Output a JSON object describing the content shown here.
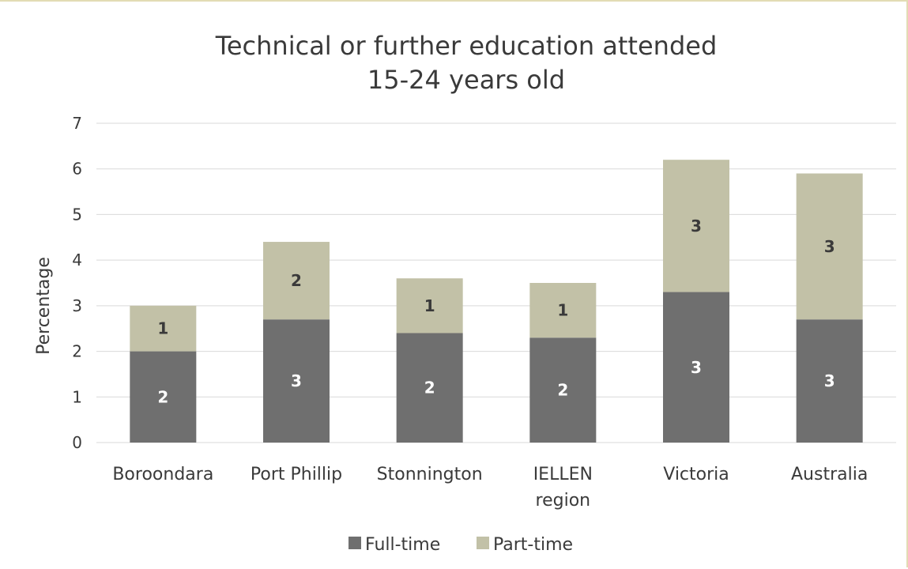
{
  "chart_data": {
    "type": "bar",
    "stacked": true,
    "title": [
      "Technical or further education attended",
      "15-24 years old"
    ],
    "xlabel": "",
    "ylabel": "Percentage",
    "ylim": [
      0,
      7
    ],
    "yticks": [
      0,
      1,
      2,
      3,
      4,
      5,
      6,
      7
    ],
    "grid": true,
    "legend_position": "bottom",
    "categories": [
      [
        "Boroondara"
      ],
      [
        "Port Phillip"
      ],
      [
        "Stonnington"
      ],
      [
        "IELLEN",
        "region"
      ],
      [
        "Victoria"
      ],
      [
        "Australia"
      ]
    ],
    "series": [
      {
        "name": "Full-time",
        "color": "#6f6f6f",
        "label_color": "#ffffff",
        "values": [
          2.0,
          2.7,
          2.4,
          2.3,
          3.3,
          2.7
        ],
        "labels": [
          "2",
          "3",
          "2",
          "2",
          "3",
          "3"
        ]
      },
      {
        "name": "Part-time",
        "color": "#c2c1a7",
        "label_color": "#3a3a3a",
        "values": [
          1.0,
          1.7,
          1.2,
          1.2,
          2.9,
          3.2
        ],
        "labels": [
          "1",
          "2",
          "1",
          "1",
          "3",
          "3"
        ]
      }
    ]
  }
}
